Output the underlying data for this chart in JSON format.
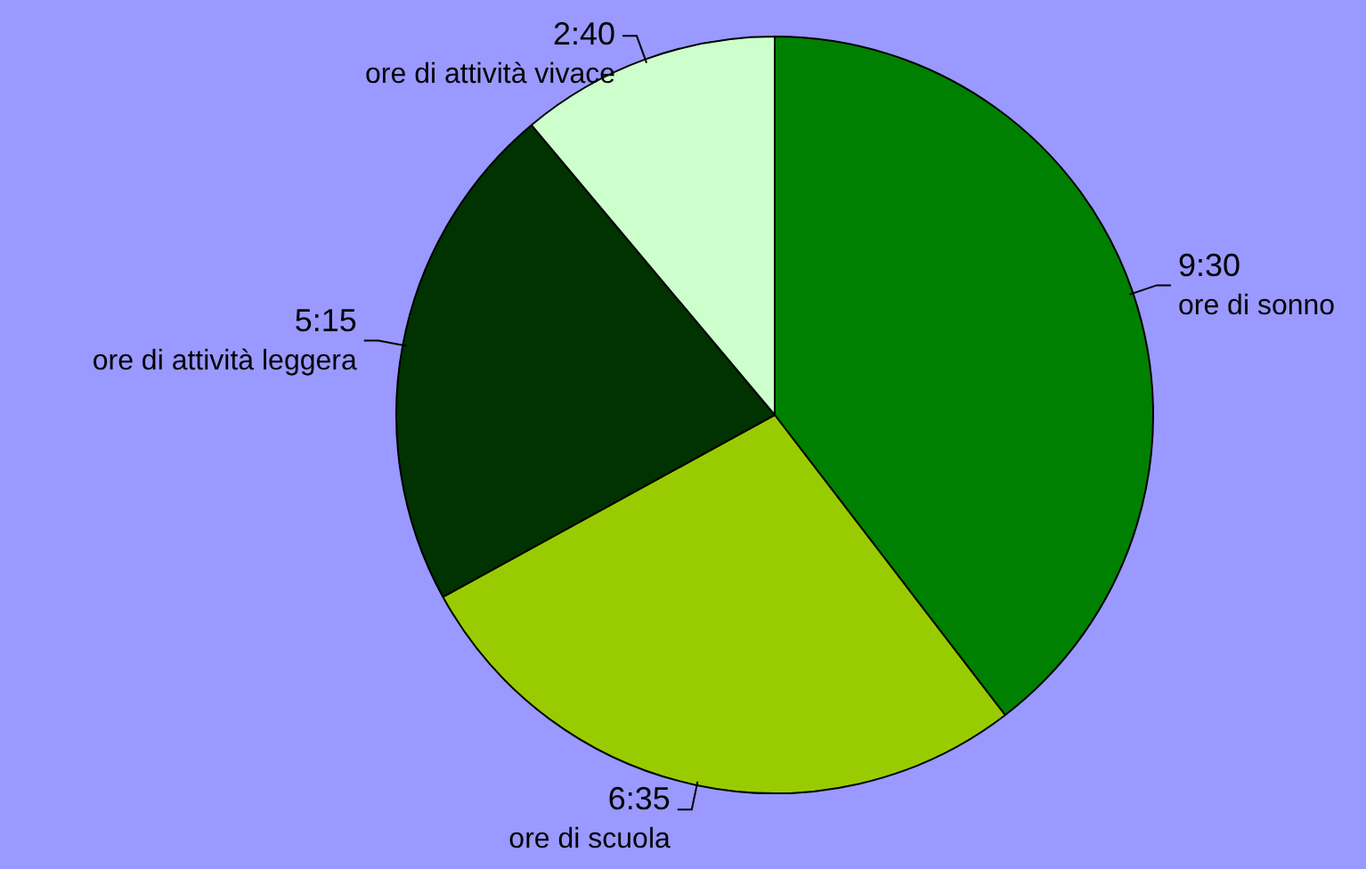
{
  "chart_data": {
    "type": "pie",
    "categories": [
      "ore di sonno",
      "ore di scuola",
      "ore di attività leggera",
      "ore di attività vivace"
    ],
    "values": [
      9.5,
      6.583,
      5.25,
      2.667
    ],
    "value_labels": [
      "9:30",
      "6:35",
      "5:15",
      "2:40"
    ],
    "colors": [
      "#008000",
      "#99cc00",
      "#003300",
      "#ccffcc"
    ],
    "legend": false
  }
}
